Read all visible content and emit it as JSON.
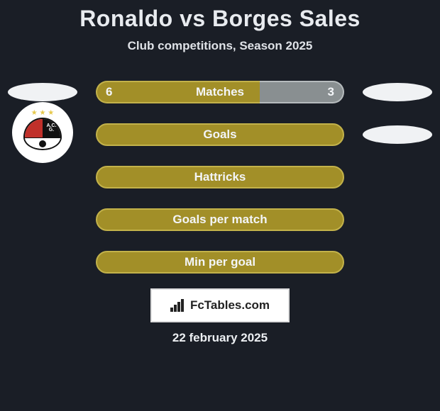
{
  "header": {
    "title": "Ronaldo vs Borges Sales",
    "subtitle": "Club competitions, Season 2025"
  },
  "colors": {
    "background": "#1a1e26",
    "left_accent": "#a28f28",
    "left_accent_border": "#c3b24a",
    "right_accent": "#898f91",
    "right_accent_border": "#b6bbbd",
    "text": "#f3f5f8"
  },
  "avatars": {
    "left": {
      "type": "ellipse",
      "bg": "#f0f2f4"
    },
    "right_top": {
      "type": "ellipse",
      "bg": "#f0f2f4"
    },
    "left_club": {
      "type": "circle-badge",
      "label": "A.C.G."
    },
    "right_club": {
      "type": "ellipse",
      "bg": "#f0f2f4"
    }
  },
  "stats": {
    "matches": {
      "label": "Matches",
      "left_value": "6",
      "right_value": "3",
      "left_width_pct": 66,
      "right_width_pct": 34,
      "left_bg": "#a28f28",
      "left_border": "#c3b24a",
      "right_bg": "#898f91",
      "right_border": "#b6bbbd"
    },
    "rows": [
      {
        "label": "Goals",
        "fill": "left",
        "bg": "#a28f28",
        "border": "#c3b24a",
        "width_pct": 100
      },
      {
        "label": "Hattricks",
        "fill": "left",
        "bg": "#a28f28",
        "border": "#c3b24a",
        "width_pct": 100
      },
      {
        "label": "Goals per match",
        "fill": "left",
        "bg": "#a28f28",
        "border": "#c3b24a",
        "width_pct": 100
      },
      {
        "label": "Min per goal",
        "fill": "left",
        "bg": "#a28f28",
        "border": "#c3b24a",
        "width_pct": 100
      }
    ]
  },
  "attribution": {
    "text": "FcTables.com"
  },
  "footer": {
    "date": "22 february 2025"
  }
}
